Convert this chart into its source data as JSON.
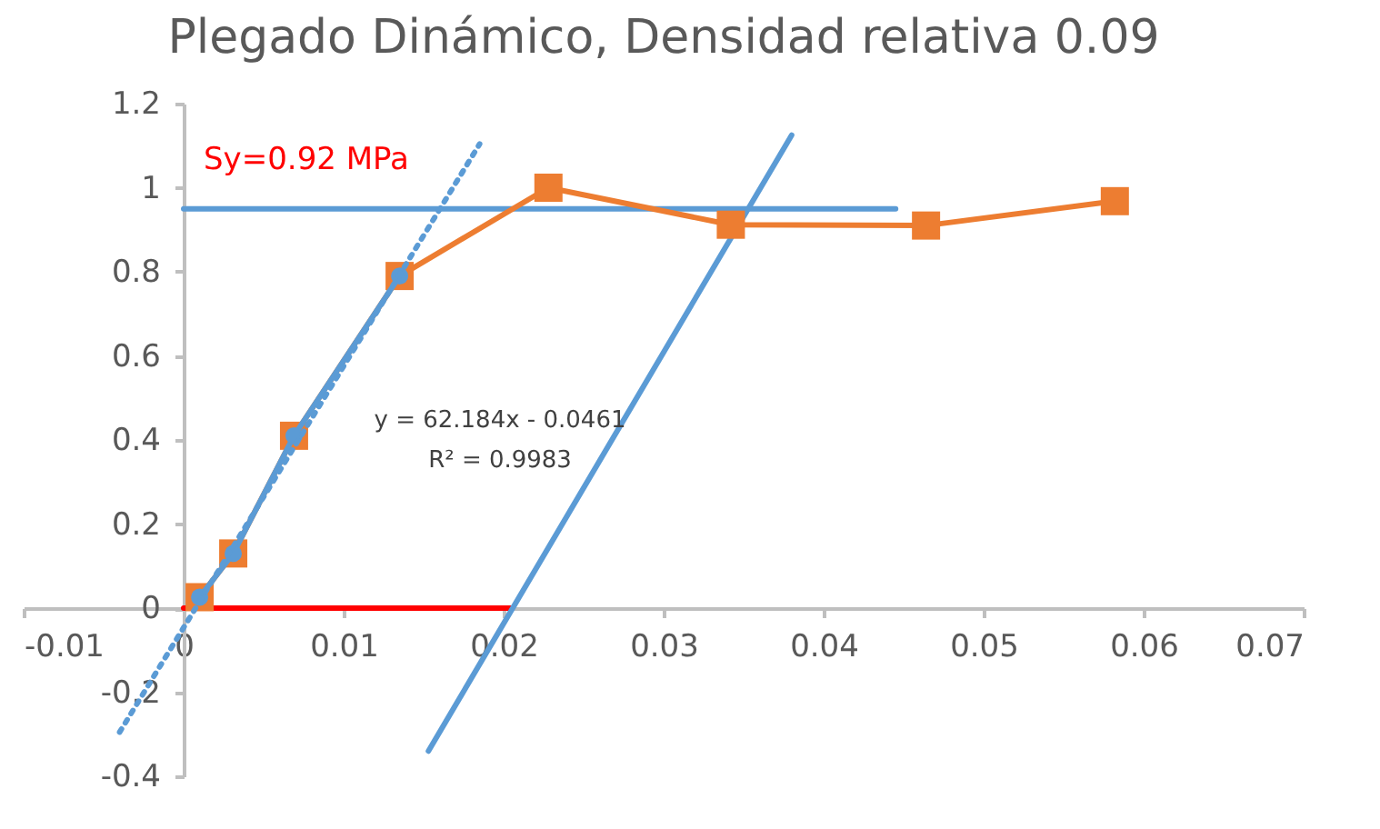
{
  "chart_data": {
    "type": "line",
    "title": "Plegado Dinámico, Densidad relativa 0.09",
    "xlim": [
      -0.01,
      0.07
    ],
    "xticks": [
      -0.01,
      0,
      0.01,
      0.02,
      0.03,
      0.04,
      0.05,
      0.06,
      0.07
    ],
    "ylim": [
      -0.4,
      1.2
    ],
    "yticks": [
      -0.4,
      -0.2,
      0,
      0.2,
      0.4,
      0.6,
      0.8,
      1,
      1.2
    ],
    "grid": false,
    "legend": false,
    "series": [
      {
        "color": "#ff0000",
        "marker": "none",
        "x": [
          0,
          0.0205
        ],
        "values": [
          0,
          0
        ]
      },
      {
        "color": "#5b9bd5",
        "marker": "none",
        "x": [
          0,
          0.0445
        ],
        "values": [
          0.95,
          0.95
        ]
      },
      {
        "color": "#5b9bd5",
        "marker": "none",
        "x": [
          0.0153,
          0.038
        ],
        "values": [
          -0.34,
          1.125
        ]
      },
      {
        "color": "#ed7d31",
        "marker": "square",
        "x": [
          0.001,
          0.0031,
          0.0069,
          0.0135,
          0.0228,
          0.0342,
          0.0464,
          0.0582
        ],
        "values": [
          0.026,
          0.13,
          0.41,
          0.79,
          1.0,
          0.912,
          0.91,
          0.968
        ]
      },
      {
        "color": "#5b9bd5",
        "marker": "circle",
        "x": [
          0.001,
          0.0031,
          0.0069,
          0.0135
        ],
        "values": [
          0.026,
          0.13,
          0.41,
          0.79
        ]
      },
      {
        "color": "#5b9bd5",
        "marker": "none",
        "line_style": "dotted",
        "x": [
          -0.004,
          0.0185
        ],
        "values": [
          -0.295,
          1.104
        ]
      }
    ],
    "annotations": [
      "Sy=0.92 MPa",
      "y = 62.184x  - 0.0461",
      "R² = 0.9983"
    ]
  }
}
